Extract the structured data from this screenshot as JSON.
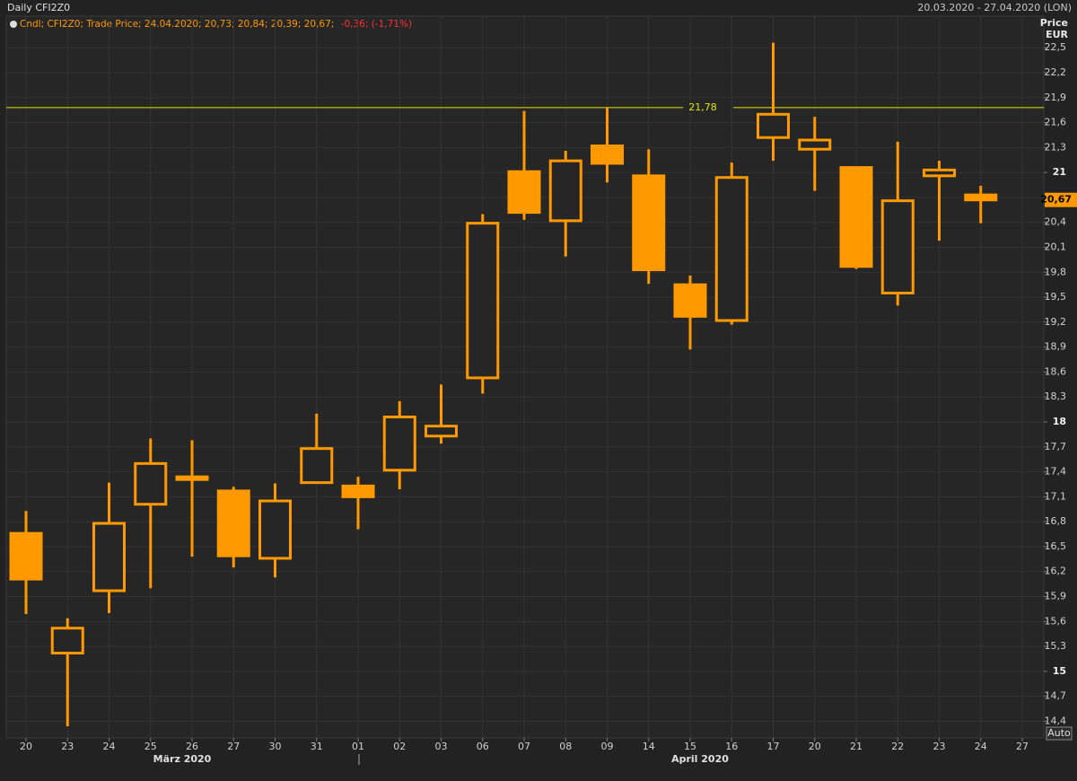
{
  "chart_data": {
    "type": "candlestick",
    "title": "Daily CFI2Z0",
    "date_range": "20.03.2020 - 27.04.2020 (LON)",
    "legend": "Cndl; CFI2Z0; Trade Price; 24.04.2020; 20,73; 20,84; 20,39; 20,67;",
    "legend_change": "-0,36; (-1,71%)",
    "y_axis_label": "Price",
    "y_axis_unit": "EUR",
    "auto_button": "Auto",
    "month_labels": [
      "März 2020",
      "April 2020"
    ],
    "categories": [
      "20",
      "23",
      "24",
      "25",
      "26",
      "27",
      "30",
      "31",
      "01",
      "02",
      "03",
      "06",
      "07",
      "08",
      "09",
      "14",
      "15",
      "16",
      "17",
      "20",
      "21",
      "22",
      "23",
      "24",
      "27"
    ],
    "series": [
      {
        "name": "CFI2Z0",
        "color": "#ff9900",
        "open": [
          16.66,
          15.22,
          15.97,
          17.01,
          17.32,
          17.17,
          16.36,
          17.27,
          17.23,
          17.42,
          17.83,
          18.53,
          21.01,
          20.42,
          21.32,
          20.96,
          19.65,
          19.22,
          21.42,
          21.28,
          21.06,
          19.55,
          20.96,
          20.73,
          null
        ],
        "high": [
          16.93,
          15.64,
          17.27,
          17.8,
          17.78,
          17.22,
          17.26,
          18.1,
          17.34,
          18.25,
          18.45,
          20.5,
          21.74,
          21.26,
          21.78,
          21.28,
          19.76,
          21.12,
          22.56,
          21.67,
          21.06,
          21.37,
          21.14,
          20.84,
          null
        ],
        "low": [
          15.69,
          14.34,
          15.7,
          16.0,
          16.38,
          16.25,
          16.13,
          17.27,
          16.71,
          17.19,
          17.74,
          18.34,
          20.43,
          19.99,
          20.88,
          19.66,
          18.87,
          19.17,
          21.14,
          20.78,
          19.84,
          19.4,
          20.18,
          20.39,
          null
        ],
        "close": [
          16.11,
          15.52,
          16.78,
          17.5,
          17.34,
          16.39,
          17.05,
          17.68,
          17.1,
          18.06,
          17.95,
          20.39,
          20.52,
          21.14,
          21.11,
          19.83,
          19.27,
          20.94,
          21.7,
          21.39,
          19.87,
          20.66,
          21.03,
          20.67,
          null
        ]
      }
    ],
    "reference_line": {
      "value": 21.78,
      "label": "21,78",
      "color": "#e6e600"
    },
    "last_price": {
      "value": 20.67,
      "label": "20,67"
    },
    "ylim": [
      14.2,
      22.88
    ],
    "yticks": [
      {
        "value": 14.4,
        "label": "14,4"
      },
      {
        "value": 14.7,
        "label": "14,7"
      },
      15,
      {
        "value": 15.3,
        "label": "15,3"
      },
      {
        "value": 15.6,
        "label": "15,6"
      },
      {
        "value": 15.9,
        "label": "15,9"
      },
      {
        "value": 16.2,
        "label": "16,2"
      },
      {
        "value": 16.5,
        "label": "16,5"
      },
      {
        "value": 16.8,
        "label": "16,8"
      },
      {
        "value": 17.1,
        "label": "17,1"
      },
      {
        "value": 17.4,
        "label": "17,4"
      },
      {
        "value": 17.7,
        "label": "17,7"
      },
      18,
      {
        "value": 18.3,
        "label": "18,3"
      },
      {
        "value": 18.6,
        "label": "18,6"
      },
      {
        "value": 18.9,
        "label": "18,9"
      },
      {
        "value": 19.2,
        "label": "19,2"
      },
      {
        "value": 19.5,
        "label": "19,5"
      },
      {
        "value": 19.8,
        "label": "19,8"
      },
      {
        "value": 20.1,
        "label": "20,1"
      },
      {
        "value": 20.4,
        "label": "20,4"
      },
      {
        "value": 20.7,
        "label": "20,7"
      },
      21,
      {
        "value": 21.3,
        "label": "21,3"
      },
      {
        "value": 21.6,
        "label": "21,6"
      },
      {
        "value": 21.9,
        "label": "21,9"
      },
      {
        "value": 22.2,
        "label": "22,2"
      },
      {
        "value": 22.5,
        "label": "22,5"
      }
    ],
    "grid": true
  }
}
